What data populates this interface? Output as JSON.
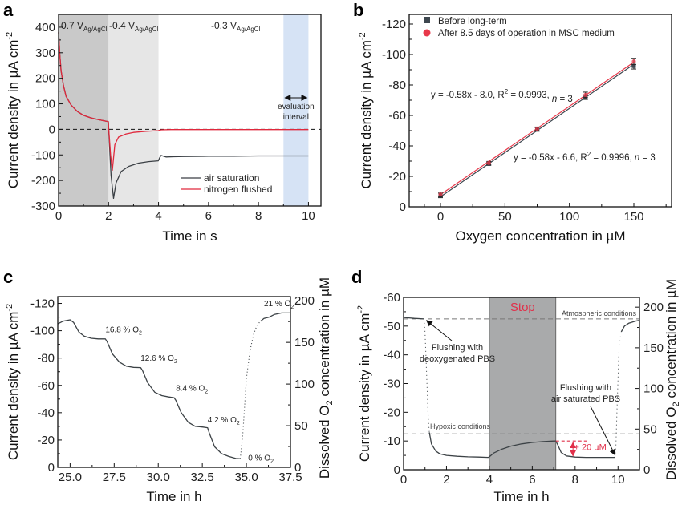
{
  "chart_data": [
    {
      "panel": "a",
      "type": "line",
      "xlabel": "Time in s",
      "ylabel": "Current density in µA cm⁻²",
      "xlim": [
        0,
        10.5
      ],
      "ylim": [
        -300,
        450
      ],
      "xticks": [
        0,
        2,
        4,
        6,
        8,
        10
      ],
      "yticks": [
        -300,
        -200,
        -100,
        0,
        100,
        200,
        300,
        400
      ],
      "regions": [
        {
          "x0": 0,
          "x1": 2,
          "label": "0.7 V",
          "sub": "Ag/AgCl",
          "color": "#c9c9c9"
        },
        {
          "x0": 2,
          "x1": 4,
          "label": "-0.4 V",
          "sub": "Ag/AgCl",
          "color": "#e6e6e6"
        },
        {
          "x0": 4,
          "x1": 10.5,
          "label": "-0.3 V",
          "sub": "Ag/AgCl",
          "color": "#ffffff"
        },
        {
          "x0": 9,
          "x1": 10,
          "label": "evaluation interval",
          "sub": "",
          "color": "#d6e3f5"
        }
      ],
      "annotation_lines": [
        "evaluation",
        "interval"
      ],
      "legend": {
        "position": "bottom-right",
        "entries": [
          "air saturation",
          "nitrogen flushed"
        ]
      },
      "series": [
        {
          "name": "air saturation",
          "color": "#3a3f44",
          "x": [
            0,
            0.05,
            0.1,
            0.2,
            0.3,
            0.5,
            0.75,
            1.0,
            1.3,
            1.6,
            1.99,
            2.0,
            2.1,
            2.2,
            2.3,
            2.5,
            2.8,
            3.2,
            3.6,
            3.99,
            4.05,
            4.1,
            4.3,
            4.6,
            5,
            6,
            7,
            8,
            9,
            10
          ],
          "y": [
            380,
            290,
            230,
            170,
            130,
            95,
            70,
            55,
            45,
            38,
            30,
            10,
            -180,
            -270,
            -210,
            -165,
            -145,
            -132,
            -126,
            -123,
            -110,
            -102,
            -108,
            -107,
            -106,
            -105,
            -105,
            -104,
            -104,
            -104
          ]
        },
        {
          "name": "nitrogen flushed",
          "color": "#e0283c",
          "x": [
            0,
            0.05,
            0.1,
            0.2,
            0.3,
            0.5,
            0.75,
            1.0,
            1.3,
            1.6,
            1.99,
            2.0,
            2.08,
            2.15,
            2.25,
            2.4,
            2.7,
            3.0,
            3.5,
            3.99,
            4.1,
            4.5,
            6,
            8,
            10
          ],
          "y": [
            380,
            290,
            230,
            170,
            130,
            95,
            70,
            55,
            45,
            38,
            30,
            10,
            -100,
            -160,
            -60,
            -30,
            -18,
            -12,
            -8,
            -5,
            -2,
            -1,
            -1,
            -1,
            -1
          ]
        }
      ]
    },
    {
      "panel": "b",
      "type": "scatter",
      "xlabel": "Oxygen concentration in µM",
      "ylabel": "Current density in µA cm⁻²",
      "xlim": [
        -25,
        180
      ],
      "ylim": [
        0,
        -125
      ],
      "xticks": [
        0,
        50,
        100,
        150
      ],
      "yticks": [
        0,
        -20,
        -40,
        -60,
        -80,
        -100,
        -120
      ],
      "legend": {
        "position": "top-left",
        "entries": [
          "Before long-term",
          "After 8.5 days of operation in MSC medium"
        ]
      },
      "series": [
        {
          "name": "Before long-term",
          "color": "#3e474f",
          "marker": "square",
          "x": [
            0,
            37.5,
            75,
            112.5,
            150
          ],
          "y": [
            -7.5,
            -28.2,
            -50.8,
            -72.0,
            -92.5
          ],
          "err": [
            1.5,
            1.0,
            1.2,
            1.5,
            2.0
          ],
          "fit": "y = -0.58x - 6.6, R² = 0.9996, n = 3",
          "slope": -0.58,
          "intercept": -6.6
        },
        {
          "name": "After 8.5 days of operation in MSC medium",
          "color": "#e8384a",
          "marker": "circle",
          "x": [
            0,
            37.5,
            75,
            112.5,
            150
          ],
          "y": [
            -8.2,
            -28.8,
            -51.2,
            -73.5,
            -95.5
          ],
          "err": [
            1.5,
            1.0,
            1.2,
            1.8,
            2.0
          ],
          "fit": "y = -0.58x - 8.0, R² = 0.9993, n = 3",
          "slope": -0.58,
          "intercept": -8.0
        }
      ]
    },
    {
      "panel": "c",
      "type": "line",
      "xlabel": "Time in h",
      "ylabel": "Current density in µA cm⁻²",
      "y2label": "Dissolved O₂ concentration in µM",
      "xlim": [
        24.3,
        37.5
      ],
      "ylim": [
        0,
        -125
      ],
      "y2lim": [
        0,
        205
      ],
      "xticks": [
        25.0,
        27.5,
        30.0,
        32.5,
        35.0,
        37.5
      ],
      "yticks": [
        0,
        -20,
        -40,
        -60,
        -80,
        -100,
        -120
      ],
      "y2ticks": [
        0,
        50,
        100,
        150,
        200
      ],
      "annotations": [
        {
          "text": "16.8 % O₂",
          "x": 27.0,
          "y": -99
        },
        {
          "text": "12.6 % O₂",
          "x": 29.0,
          "y": -78
        },
        {
          "text": "8.4 % O₂",
          "x": 31.0,
          "y": -56
        },
        {
          "text": "4.2 % O₂",
          "x": 32.8,
          "y": -33
        },
        {
          "text": "0 % O₂",
          "x": 35.1,
          "y": -5
        },
        {
          "text": "21 % O₂",
          "x": 36.0,
          "y": -118
        }
      ],
      "series": [
        {
          "name": "current density",
          "color": "#3c4246",
          "x": [
            24.3,
            24.6,
            25.0,
            25.2,
            25.5,
            25.8,
            26.2,
            26.6,
            27.0,
            27.1,
            27.4,
            27.8,
            28.2,
            28.6,
            29.0,
            29.1,
            29.4,
            29.8,
            30.2,
            30.6,
            30.9,
            31.0,
            31.3,
            31.7,
            32.1,
            32.5,
            32.8,
            32.9,
            33.2,
            33.6,
            34.0,
            34.4,
            34.65,
            34.7,
            34.8,
            34.9,
            35.0,
            35.2,
            35.4,
            35.6,
            35.8,
            36.0,
            36.3,
            36.6,
            37.0,
            37.5
          ],
          "y": [
            -105,
            -107,
            -108,
            -106,
            -99,
            -96,
            -94.5,
            -94,
            -94,
            -92,
            -83,
            -77,
            -74,
            -73.2,
            -73,
            -71,
            -62,
            -55,
            -52.5,
            -51.5,
            -51,
            -49,
            -40,
            -33,
            -30,
            -29.5,
            -29,
            -25,
            -15,
            -10,
            -8,
            -6.5,
            -6.3,
            -12,
            -25,
            -45,
            -65,
            -85,
            -97,
            -104,
            -107,
            -109,
            -110,
            -112,
            -113,
            -113
          ]
        }
      ]
    },
    {
      "panel": "d",
      "type": "line",
      "xlabel": "Time in h",
      "ylabel": "Current density in µA cm⁻²",
      "y2label": "Dissolved O₂ concentration in µM",
      "xlim": [
        0,
        11
      ],
      "ylim": [
        0,
        -60
      ],
      "y2lim": [
        0,
        212
      ],
      "xticks": [
        0,
        2,
        4,
        6,
        8,
        10
      ],
      "yticks": [
        0,
        -10,
        -20,
        -30,
        -40,
        -50,
        -60
      ],
      "y2ticks": [
        0,
        50,
        100,
        150,
        200
      ],
      "stop_region": {
        "x0": 4,
        "x1": 7.1,
        "label": "Stop",
        "color": "#a9aaab",
        "label_color": "#e0304a"
      },
      "reference_lines": [
        {
          "label": "Atmospheric conditions",
          "y": -52.5
        },
        {
          "label": "Hypoxic conditions",
          "y": -12.5
        }
      ],
      "annotations": [
        {
          "text": "Flushing with deoxygenated PBS",
          "lines": [
            "Flushing with",
            "deoxygenated PBS"
          ],
          "arrow_to": [
            1.0,
            -52.5
          ]
        },
        {
          "text": "Flushing with air saturated PBS",
          "lines": [
            "Flushing with",
            "air saturated PBS"
          ],
          "arrow_to": [
            9.9,
            -4.3
          ]
        },
        {
          "text": "+ 20 µM",
          "color": "#e0304a"
        }
      ],
      "series": [
        {
          "name": "current density",
          "color": "#3c4246",
          "x": [
            0,
            0.5,
            0.95,
            1.0,
            1.05,
            1.1,
            1.15,
            1.2,
            1.3,
            1.5,
            1.7,
            2.0,
            2.5,
            3.0,
            3.5,
            3.95,
            4.0,
            4.2,
            4.6,
            5.0,
            5.5,
            6.0,
            6.5,
            7.0,
            7.1,
            7.2,
            7.35,
            7.6,
            8.0,
            8.5,
            9.0,
            9.5,
            9.85,
            9.9,
            9.95,
            10.0,
            10.05,
            10.15,
            10.3,
            10.5,
            10.8,
            11.0
          ],
          "y": [
            -53,
            -52.7,
            -52.5,
            -48,
            -38,
            -28,
            -18,
            -13,
            -9,
            -6.5,
            -5.5,
            -5.0,
            -4.7,
            -4.5,
            -4.4,
            -4.3,
            -4.5,
            -5.8,
            -7.2,
            -8.2,
            -9.0,
            -9.5,
            -9.8,
            -10.0,
            -10.0,
            -8.5,
            -6.0,
            -4.8,
            -4.4,
            -4.3,
            -4.3,
            -4.3,
            -4.3,
            -8,
            -20,
            -32,
            -43,
            -48,
            -50,
            -51,
            -51.7,
            -52
          ]
        }
      ]
    }
  ]
}
